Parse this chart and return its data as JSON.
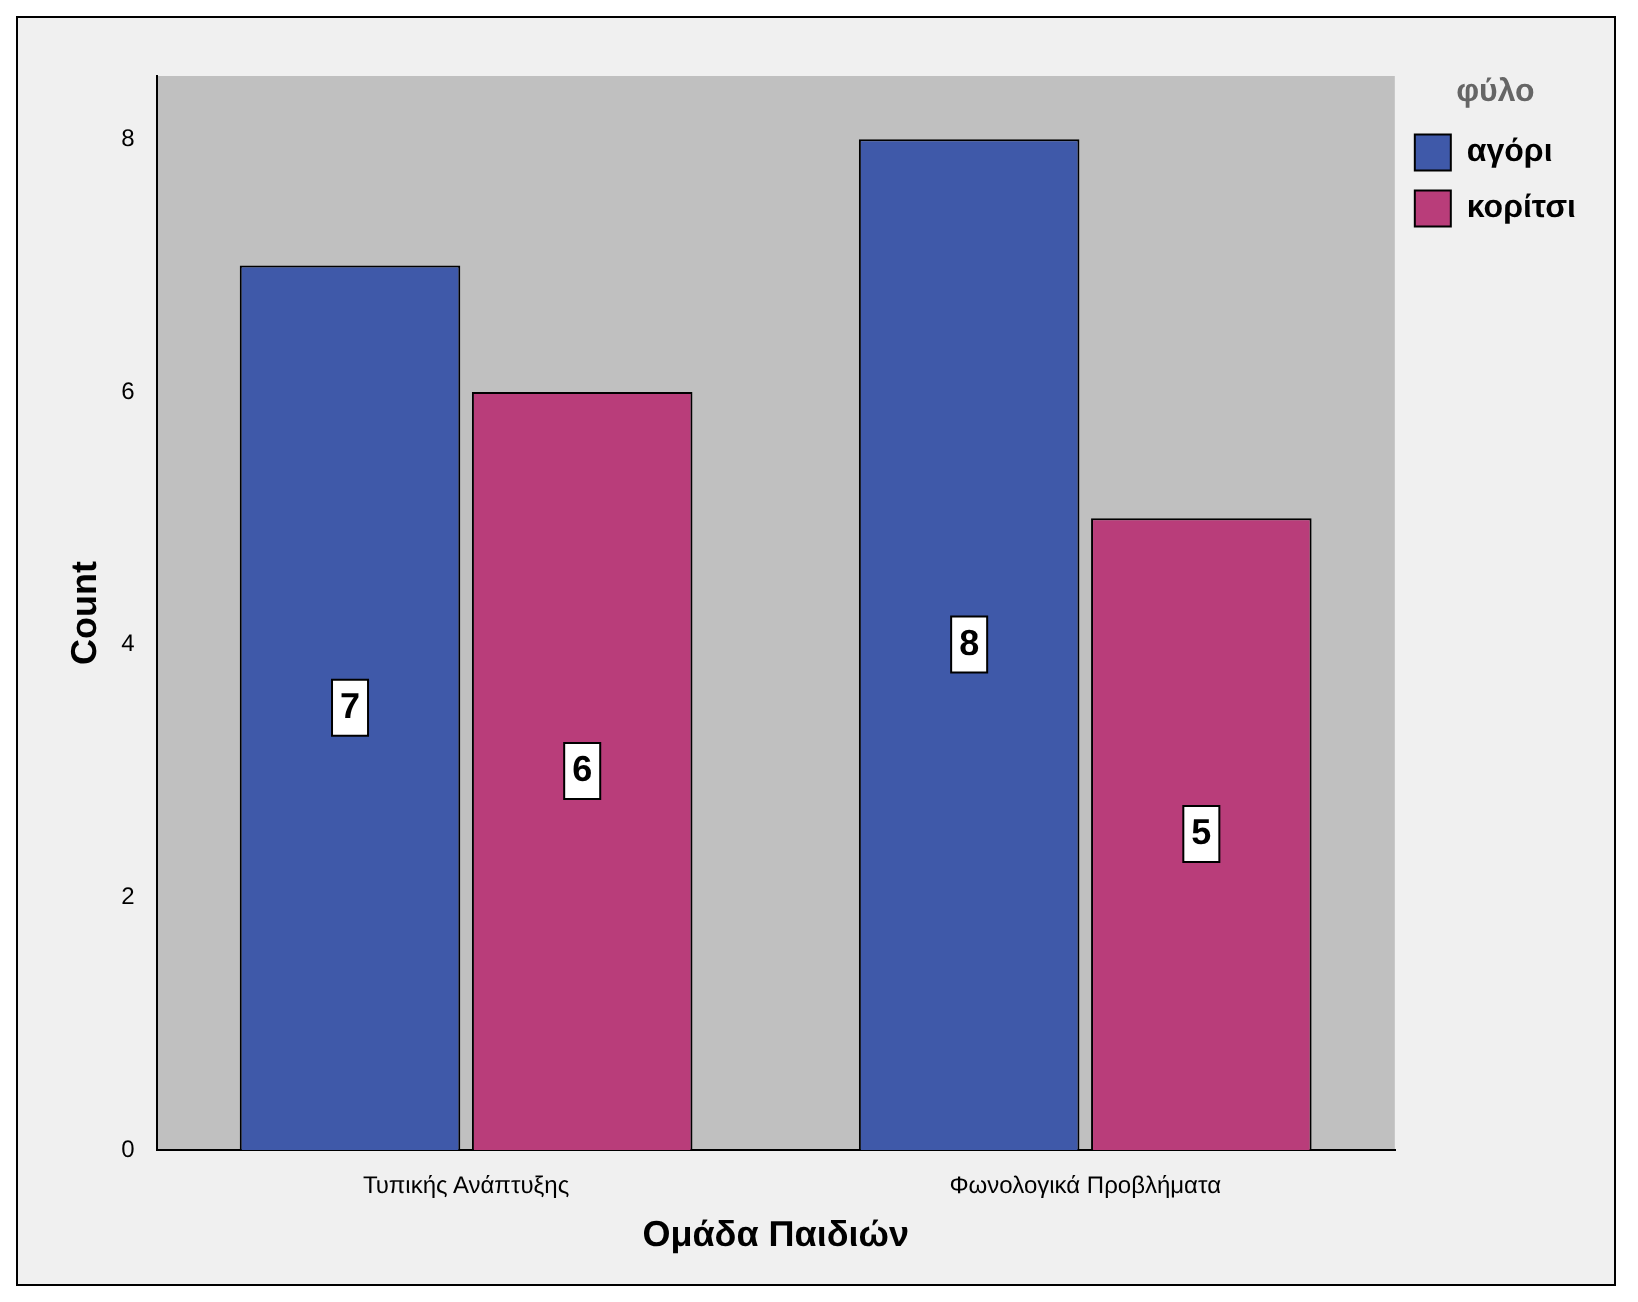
{
  "chart_data": {
    "type": "bar",
    "xlabel": "Ομάδα Παιδιών",
    "ylabel": "Count",
    "legend_title": "φύλο",
    "categories": [
      "Τυπικής Ανάπτυξης",
      "Φωνολογικά Προβλήματα"
    ],
    "series": [
      {
        "name": "αγόρι",
        "color": "#3f59a9",
        "values": [
          7,
          8
        ]
      },
      {
        "name": "κορίτσι",
        "color": "#b93d7a",
        "values": [
          6,
          5
        ]
      }
    ],
    "ylim": [
      0,
      8.5
    ],
    "yticks": [
      0,
      2,
      4,
      6,
      8
    ],
    "grid": false,
    "legend": "top right",
    "data_labels": true
  }
}
